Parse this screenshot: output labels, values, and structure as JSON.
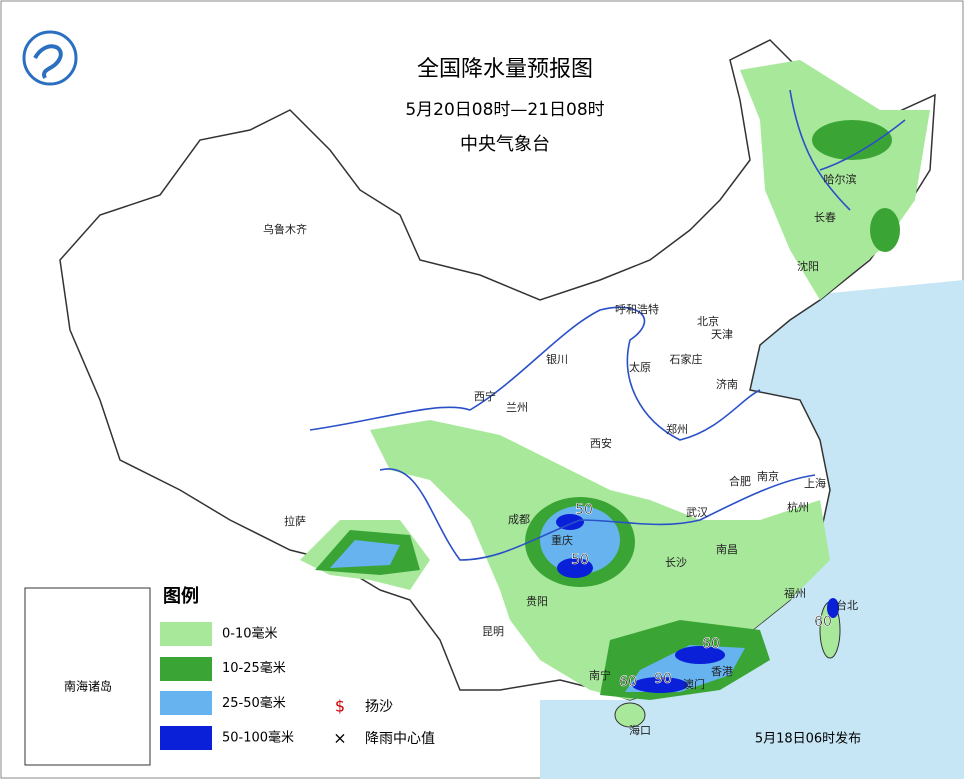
{
  "header": {
    "title": "全国降水量预报图",
    "period": "5月20日08时—21日08时",
    "issuer": "中央气象台"
  },
  "cities": [
    "乌鲁木齐",
    "哈尔滨",
    "长春",
    "沈阳",
    "呼和浩特",
    "北京",
    "天津",
    "石家庄",
    "银川",
    "太原",
    "济南",
    "西宁",
    "兰州",
    "郑州",
    "西安",
    "合肥",
    "南京",
    "上海",
    "武汉",
    "杭州",
    "成都",
    "重庆",
    "拉萨",
    "长沙",
    "南昌",
    "贵阳",
    "福州",
    "台北",
    "昆明",
    "南宁",
    "香港",
    "澳门",
    "海口"
  ],
  "rain_centers": [
    50,
    50,
    60,
    60,
    60,
    90
  ],
  "legend": {
    "title": "图例",
    "items": [
      "0-10毫米",
      "10-25毫米",
      "25-50毫米",
      "50-100毫米"
    ],
    "symbols": [
      {
        "icon": "$",
        "label": "扬沙"
      },
      {
        "icon": "×",
        "label": "降雨中心值"
      }
    ]
  },
  "inset_label": "南海诸岛",
  "footer": "5月18日06时发布"
}
